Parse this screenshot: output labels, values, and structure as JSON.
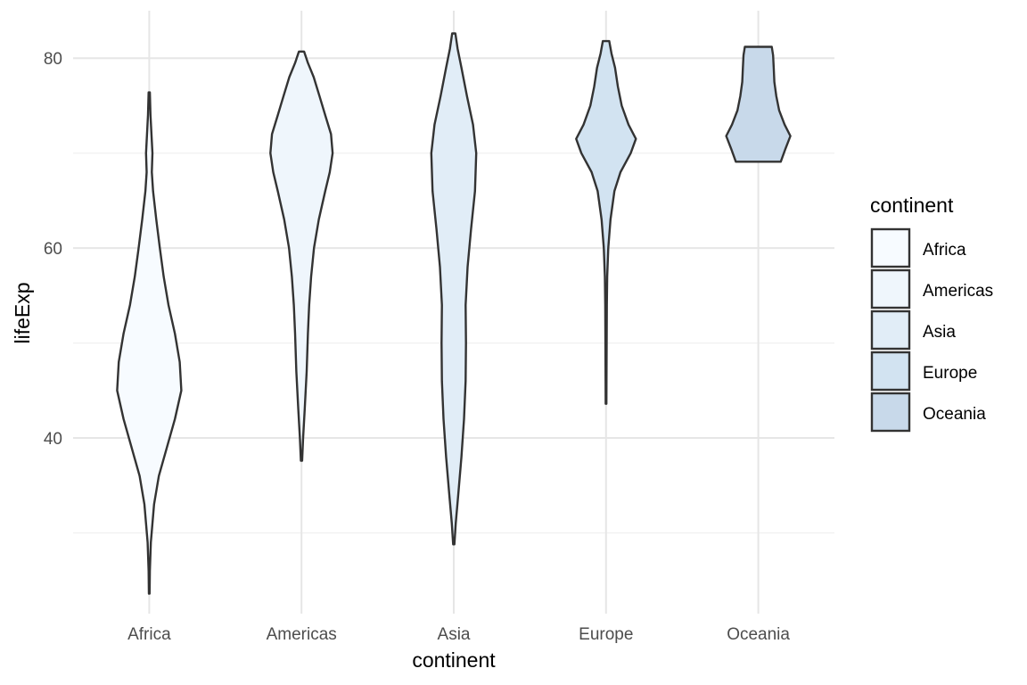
{
  "chart_data": {
    "type": "violin",
    "title": "",
    "xlabel": "continent",
    "ylabel": "lifeExp",
    "ylim": [
      21.5,
      85
    ],
    "y_ticks": [
      40,
      60,
      80
    ],
    "grid": true,
    "legend": {
      "title": "continent",
      "placement": "right",
      "items": [
        "Africa",
        "Americas",
        "Asia",
        "Europe",
        "Oceania"
      ]
    },
    "categories": [
      "Africa",
      "Americas",
      "Asia",
      "Europe",
      "Oceania"
    ],
    "colors": {
      "Africa": "#f7fbff",
      "Americas": "#eff6fc",
      "Asia": "#e1edf7",
      "Europe": "#d2e3f1",
      "Oceania": "#c8d9ea",
      "outline": "#333333",
      "grid_major": "#e6e6e6",
      "grid_minor": "#f0f0f0"
    },
    "series": [
      {
        "name": "Africa",
        "min": 23.6,
        "max": 76.4,
        "density": [
          [
            23.6,
            0.01
          ],
          [
            26,
            0.02
          ],
          [
            29,
            0.05
          ],
          [
            33,
            0.15
          ],
          [
            36,
            0.3
          ],
          [
            39,
            0.55
          ],
          [
            42,
            0.8
          ],
          [
            45,
            1.0
          ],
          [
            48,
            0.95
          ],
          [
            51,
            0.8
          ],
          [
            54,
            0.6
          ],
          [
            57,
            0.45
          ],
          [
            60,
            0.33
          ],
          [
            63,
            0.22
          ],
          [
            66,
            0.12
          ],
          [
            68,
            0.08
          ],
          [
            70,
            0.1
          ],
          [
            72,
            0.07
          ],
          [
            74,
            0.04
          ],
          [
            76.4,
            0.02
          ]
        ]
      },
      {
        "name": "Americas",
        "min": 37.6,
        "max": 80.7,
        "density": [
          [
            37.6,
            0.02
          ],
          [
            40,
            0.05
          ],
          [
            43,
            0.1
          ],
          [
            47,
            0.16
          ],
          [
            51,
            0.2
          ],
          [
            54,
            0.24
          ],
          [
            57,
            0.3
          ],
          [
            60,
            0.39
          ],
          [
            63,
            0.54
          ],
          [
            66,
            0.74
          ],
          [
            68,
            0.88
          ],
          [
            70,
            0.97
          ],
          [
            72,
            0.92
          ],
          [
            74,
            0.74
          ],
          [
            76,
            0.56
          ],
          [
            78,
            0.38
          ],
          [
            79.5,
            0.2
          ],
          [
            80.7,
            0.08
          ]
        ]
      },
      {
        "name": "Asia",
        "min": 28.8,
        "max": 82.6,
        "density": [
          [
            28.8,
            0.02
          ],
          [
            31,
            0.06
          ],
          [
            34,
            0.14
          ],
          [
            38,
            0.24
          ],
          [
            42,
            0.32
          ],
          [
            46,
            0.37
          ],
          [
            50,
            0.38
          ],
          [
            54,
            0.37
          ],
          [
            58,
            0.43
          ],
          [
            62,
            0.54
          ],
          [
            66,
            0.66
          ],
          [
            70,
            0.7
          ],
          [
            73,
            0.6
          ],
          [
            76,
            0.41
          ],
          [
            79,
            0.24
          ],
          [
            81,
            0.12
          ],
          [
            82.6,
            0.05
          ]
        ]
      },
      {
        "name": "Europe",
        "min": 43.6,
        "max": 81.8,
        "density": [
          [
            43.6,
            0.01
          ],
          [
            46,
            0.015
          ],
          [
            50,
            0.02
          ],
          [
            54,
            0.025
          ],
          [
            57,
            0.035
          ],
          [
            60,
            0.07
          ],
          [
            63,
            0.14
          ],
          [
            66,
            0.26
          ],
          [
            68,
            0.45
          ],
          [
            70,
            0.77
          ],
          [
            71.5,
            0.93
          ],
          [
            73,
            0.7
          ],
          [
            75,
            0.49
          ],
          [
            77,
            0.37
          ],
          [
            79,
            0.28
          ],
          [
            80.5,
            0.17
          ],
          [
            81.8,
            0.1
          ]
        ]
      },
      {
        "name": "Oceania",
        "min": 69.1,
        "max": 81.2,
        "density": [
          [
            69.1,
            0.7
          ],
          [
            70.5,
            0.85
          ],
          [
            71.8,
            1.0
          ],
          [
            73,
            0.82
          ],
          [
            74.5,
            0.65
          ],
          [
            76,
            0.56
          ],
          [
            77.5,
            0.5
          ],
          [
            79,
            0.48
          ],
          [
            80.3,
            0.46
          ],
          [
            81.2,
            0.42
          ]
        ]
      }
    ]
  }
}
